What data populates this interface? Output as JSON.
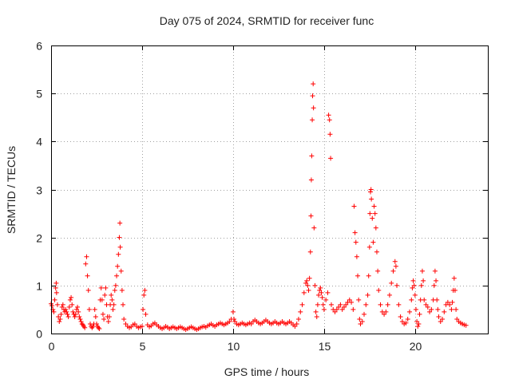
{
  "chart_data": {
    "type": "scatter",
    "title": "Day 075 of 2024, SRMTID for receiver func",
    "xlabel": "GPS time / hours",
    "ylabel": "SRMTID / TECUs",
    "xlim": [
      0,
      24
    ],
    "ylim": [
      0,
      6
    ],
    "xticks": [
      0,
      5,
      10,
      15,
      20
    ],
    "yticks": [
      0,
      1,
      2,
      3,
      4,
      5,
      6
    ],
    "grid": true,
    "marker": "+",
    "series": [
      {
        "name": "SRMTID",
        "color": "#ff0000",
        "points": [
          [
            0.0,
            0.62
          ],
          [
            0.05,
            0.58
          ],
          [
            0.1,
            0.5
          ],
          [
            0.15,
            0.45
          ],
          [
            0.2,
            0.7
          ],
          [
            0.25,
            0.95
          ],
          [
            0.28,
            1.05
          ],
          [
            0.3,
            0.85
          ],
          [
            0.35,
            0.6
          ],
          [
            0.4,
            0.35
          ],
          [
            0.45,
            0.25
          ],
          [
            0.5,
            0.3
          ],
          [
            0.55,
            0.4
          ],
          [
            0.6,
            0.55
          ],
          [
            0.65,
            0.6
          ],
          [
            0.7,
            0.5
          ],
          [
            0.75,
            0.45
          ],
          [
            0.8,
            0.5
          ],
          [
            0.85,
            0.45
          ],
          [
            0.9,
            0.4
          ],
          [
            0.95,
            0.35
          ],
          [
            1.0,
            0.55
          ],
          [
            1.05,
            0.7
          ],
          [
            1.1,
            0.75
          ],
          [
            1.15,
            0.6
          ],
          [
            1.2,
            0.45
          ],
          [
            1.25,
            0.4
          ],
          [
            1.3,
            0.35
          ],
          [
            1.35,
            0.4
          ],
          [
            1.4,
            0.5
          ],
          [
            1.45,
            0.55
          ],
          [
            1.5,
            0.45
          ],
          [
            1.55,
            0.35
          ],
          [
            1.6,
            0.3
          ],
          [
            1.65,
            0.25
          ],
          [
            1.7,
            0.2
          ],
          [
            1.75,
            0.18
          ],
          [
            1.8,
            0.15
          ],
          [
            1.85,
            0.12
          ],
          [
            1.9,
            1.45
          ],
          [
            1.95,
            1.6
          ],
          [
            2.0,
            1.2
          ],
          [
            2.05,
            0.9
          ],
          [
            2.1,
            0.5
          ],
          [
            2.15,
            0.2
          ],
          [
            2.2,
            0.15
          ],
          [
            2.25,
            0.12
          ],
          [
            2.3,
            0.15
          ],
          [
            2.35,
            0.2
          ],
          [
            2.4,
            0.5
          ],
          [
            2.45,
            0.35
          ],
          [
            2.5,
            0.2
          ],
          [
            2.55,
            0.15
          ],
          [
            2.6,
            0.12
          ],
          [
            2.65,
            0.1
          ],
          [
            2.7,
            0.7
          ],
          [
            2.75,
            0.95
          ],
          [
            2.8,
            0.7
          ],
          [
            2.85,
            0.4
          ],
          [
            2.9,
            0.3
          ],
          [
            2.95,
            0.8
          ],
          [
            3.0,
            0.95
          ],
          [
            3.05,
            0.6
          ],
          [
            3.1,
            0.35
          ],
          [
            3.15,
            0.25
          ],
          [
            3.2,
            0.35
          ],
          [
            3.25,
            0.6
          ],
          [
            3.3,
            0.8
          ],
          [
            3.35,
            0.7
          ],
          [
            3.4,
            0.5
          ],
          [
            3.45,
            0.6
          ],
          [
            3.5,
            0.9
          ],
          [
            3.55,
            1.0
          ],
          [
            3.6,
            1.2
          ],
          [
            3.65,
            1.4
          ],
          [
            3.7,
            1.65
          ],
          [
            3.75,
            2.0
          ],
          [
            3.78,
            2.3
          ],
          [
            3.8,
            1.8
          ],
          [
            3.85,
            1.3
          ],
          [
            3.9,
            0.9
          ],
          [
            3.95,
            0.6
          ],
          [
            4.0,
            0.3
          ],
          [
            4.1,
            0.2
          ],
          [
            4.2,
            0.15
          ],
          [
            4.3,
            0.12
          ],
          [
            4.4,
            0.14
          ],
          [
            4.5,
            0.18
          ],
          [
            4.6,
            0.2
          ],
          [
            4.7,
            0.15
          ],
          [
            4.8,
            0.12
          ],
          [
            4.9,
            0.14
          ],
          [
            5.0,
            0.15
          ],
          [
            5.05,
            0.5
          ],
          [
            5.1,
            0.8
          ],
          [
            5.15,
            0.9
          ],
          [
            5.2,
            0.4
          ],
          [
            5.3,
            0.18
          ],
          [
            5.4,
            0.14
          ],
          [
            5.5,
            0.16
          ],
          [
            5.6,
            0.2
          ],
          [
            5.7,
            0.22
          ],
          [
            5.8,
            0.18
          ],
          [
            5.9,
            0.15
          ],
          [
            6.0,
            0.12
          ],
          [
            6.1,
            0.1
          ],
          [
            6.2,
            0.12
          ],
          [
            6.3,
            0.15
          ],
          [
            6.4,
            0.13
          ],
          [
            6.5,
            0.1
          ],
          [
            6.6,
            0.12
          ],
          [
            6.7,
            0.14
          ],
          [
            6.8,
            0.12
          ],
          [
            6.9,
            0.1
          ],
          [
            7.0,
            0.12
          ],
          [
            7.1,
            0.14
          ],
          [
            7.2,
            0.12
          ],
          [
            7.3,
            0.1
          ],
          [
            7.4,
            0.08
          ],
          [
            7.5,
            0.1
          ],
          [
            7.6,
            0.12
          ],
          [
            7.7,
            0.14
          ],
          [
            7.8,
            0.12
          ],
          [
            7.9,
            0.1
          ],
          [
            8.0,
            0.08
          ],
          [
            8.1,
            0.1
          ],
          [
            8.2,
            0.12
          ],
          [
            8.3,
            0.14
          ],
          [
            8.4,
            0.15
          ],
          [
            8.5,
            0.13
          ],
          [
            8.6,
            0.16
          ],
          [
            8.7,
            0.18
          ],
          [
            8.8,
            0.2
          ],
          [
            8.9,
            0.17
          ],
          [
            9.0,
            0.15
          ],
          [
            9.1,
            0.18
          ],
          [
            9.2,
            0.2
          ],
          [
            9.3,
            0.22
          ],
          [
            9.4,
            0.2
          ],
          [
            9.5,
            0.18
          ],
          [
            9.6,
            0.2
          ],
          [
            9.7,
            0.22
          ],
          [
            9.8,
            0.25
          ],
          [
            9.9,
            0.3
          ],
          [
            10.0,
            0.45
          ],
          [
            10.05,
            0.3
          ],
          [
            10.1,
            0.25
          ],
          [
            10.2,
            0.2
          ],
          [
            10.3,
            0.18
          ],
          [
            10.4,
            0.2
          ],
          [
            10.5,
            0.22
          ],
          [
            10.6,
            0.2
          ],
          [
            10.7,
            0.18
          ],
          [
            10.8,
            0.2
          ],
          [
            10.9,
            0.22
          ],
          [
            11.0,
            0.2
          ],
          [
            11.1,
            0.25
          ],
          [
            11.2,
            0.28
          ],
          [
            11.3,
            0.25
          ],
          [
            11.4,
            0.22
          ],
          [
            11.5,
            0.2
          ],
          [
            11.6,
            0.22
          ],
          [
            11.7,
            0.25
          ],
          [
            11.8,
            0.28
          ],
          [
            11.9,
            0.25
          ],
          [
            12.0,
            0.22
          ],
          [
            12.1,
            0.2
          ],
          [
            12.2,
            0.22
          ],
          [
            12.3,
            0.25
          ],
          [
            12.4,
            0.22
          ],
          [
            12.5,
            0.2
          ],
          [
            12.6,
            0.22
          ],
          [
            12.7,
            0.25
          ],
          [
            12.8,
            0.22
          ],
          [
            12.9,
            0.2
          ],
          [
            13.0,
            0.22
          ],
          [
            13.1,
            0.25
          ],
          [
            13.2,
            0.22
          ],
          [
            13.3,
            0.18
          ],
          [
            13.4,
            0.15
          ],
          [
            13.5,
            0.2
          ],
          [
            13.6,
            0.3
          ],
          [
            13.7,
            0.45
          ],
          [
            13.8,
            0.6
          ],
          [
            13.9,
            0.85
          ],
          [
            14.0,
            1.05
          ],
          [
            14.05,
            1.1
          ],
          [
            14.1,
            1.0
          ],
          [
            14.15,
            0.9
          ],
          [
            14.2,
            1.15
          ],
          [
            14.25,
            1.7
          ],
          [
            14.28,
            2.45
          ],
          [
            14.3,
            3.2
          ],
          [
            14.32,
            3.7
          ],
          [
            14.35,
            4.45
          ],
          [
            14.37,
            4.95
          ],
          [
            14.4,
            5.2
          ],
          [
            14.42,
            4.7
          ],
          [
            14.45,
            2.2
          ],
          [
            14.5,
            1.0
          ],
          [
            14.55,
            0.45
          ],
          [
            14.6,
            0.35
          ],
          [
            14.65,
            0.6
          ],
          [
            14.7,
            0.8
          ],
          [
            14.75,
            0.9
          ],
          [
            14.8,
            0.95
          ],
          [
            14.85,
            0.85
          ],
          [
            14.9,
            0.75
          ],
          [
            14.95,
            0.6
          ],
          [
            15.0,
            0.5
          ],
          [
            15.1,
            0.7
          ],
          [
            15.2,
            0.85
          ],
          [
            15.25,
            4.55
          ],
          [
            15.3,
            4.45
          ],
          [
            15.33,
            4.15
          ],
          [
            15.36,
            3.65
          ],
          [
            15.4,
            0.6
          ],
          [
            15.5,
            0.5
          ],
          [
            15.6,
            0.45
          ],
          [
            15.7,
            0.5
          ],
          [
            15.8,
            0.55
          ],
          [
            15.9,
            0.6
          ],
          [
            16.0,
            0.5
          ],
          [
            16.1,
            0.55
          ],
          [
            16.2,
            0.6
          ],
          [
            16.3,
            0.65
          ],
          [
            16.4,
            0.7
          ],
          [
            16.5,
            0.65
          ],
          [
            16.6,
            0.5
          ],
          [
            16.65,
            2.65
          ],
          [
            16.7,
            2.1
          ],
          [
            16.75,
            1.9
          ],
          [
            16.8,
            1.6
          ],
          [
            16.85,
            1.2
          ],
          [
            16.9,
            0.7
          ],
          [
            16.95,
            0.3
          ],
          [
            17.0,
            0.2
          ],
          [
            17.1,
            0.25
          ],
          [
            17.2,
            0.4
          ],
          [
            17.3,
            0.6
          ],
          [
            17.4,
            0.8
          ],
          [
            17.45,
            1.2
          ],
          [
            17.5,
            1.8
          ],
          [
            17.52,
            2.5
          ],
          [
            17.55,
            2.95
          ],
          [
            17.58,
            3.0
          ],
          [
            17.6,
            2.8
          ],
          [
            17.65,
            2.4
          ],
          [
            17.7,
            1.9
          ],
          [
            17.75,
            2.65
          ],
          [
            17.8,
            2.5
          ],
          [
            17.85,
            2.2
          ],
          [
            17.9,
            1.7
          ],
          [
            17.95,
            1.3
          ],
          [
            18.0,
            0.9
          ],
          [
            18.1,
            0.6
          ],
          [
            18.2,
            0.45
          ],
          [
            18.3,
            0.4
          ],
          [
            18.4,
            0.45
          ],
          [
            18.5,
            0.6
          ],
          [
            18.6,
            0.8
          ],
          [
            18.7,
            1.05
          ],
          [
            18.8,
            1.3
          ],
          [
            18.9,
            1.5
          ],
          [
            18.95,
            1.4
          ],
          [
            19.0,
            1.0
          ],
          [
            19.1,
            0.6
          ],
          [
            19.2,
            0.35
          ],
          [
            19.3,
            0.25
          ],
          [
            19.4,
            0.2
          ],
          [
            19.5,
            0.22
          ],
          [
            19.6,
            0.3
          ],
          [
            19.7,
            0.45
          ],
          [
            19.8,
            0.7
          ],
          [
            19.85,
            0.95
          ],
          [
            19.9,
            1.1
          ],
          [
            19.95,
            1.0
          ],
          [
            20.0,
            0.8
          ],
          [
            20.05,
            0.5
          ],
          [
            20.1,
            0.25
          ],
          [
            20.15,
            0.15
          ],
          [
            20.2,
            0.2
          ],
          [
            20.25,
            0.4
          ],
          [
            20.3,
            0.7
          ],
          [
            20.35,
            1.0
          ],
          [
            20.4,
            1.3
          ],
          [
            20.45,
            1.1
          ],
          [
            20.5,
            0.7
          ],
          [
            20.6,
            0.6
          ],
          [
            20.7,
            0.55
          ],
          [
            20.8,
            0.45
          ],
          [
            20.9,
            0.5
          ],
          [
            21.0,
            0.7
          ],
          [
            21.05,
            1.0
          ],
          [
            21.1,
            1.3
          ],
          [
            21.15,
            1.1
          ],
          [
            21.2,
            0.7
          ],
          [
            21.25,
            0.5
          ],
          [
            21.3,
            0.35
          ],
          [
            21.4,
            0.25
          ],
          [
            21.5,
            0.3
          ],
          [
            21.6,
            0.45
          ],
          [
            21.7,
            0.6
          ],
          [
            21.8,
            0.65
          ],
          [
            21.9,
            0.6
          ],
          [
            22.0,
            0.5
          ],
          [
            22.05,
            0.65
          ],
          [
            22.1,
            0.9
          ],
          [
            22.15,
            1.15
          ],
          [
            22.2,
            0.9
          ],
          [
            22.25,
            0.5
          ],
          [
            22.3,
            0.3
          ],
          [
            22.4,
            0.25
          ],
          [
            22.5,
            0.22
          ],
          [
            22.6,
            0.2
          ],
          [
            22.7,
            0.18
          ],
          [
            22.8,
            0.17
          ]
        ]
      }
    ]
  }
}
